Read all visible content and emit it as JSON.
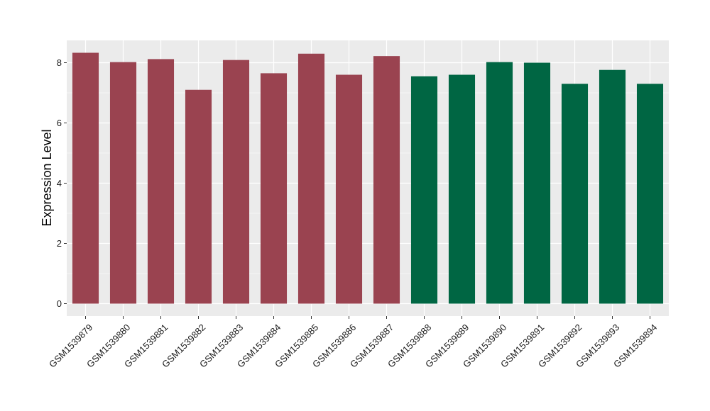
{
  "chart_data": {
    "type": "bar",
    "title": "",
    "xlabel": "",
    "ylabel": "Expression Level",
    "ylim": [
      0,
      8.75
    ],
    "yticks": [
      0,
      2,
      4,
      6,
      8
    ],
    "grid": true,
    "legend": "none",
    "categories": [
      "GSM1539879",
      "GSM1539880",
      "GSM1539881",
      "GSM1539882",
      "GSM1539883",
      "GSM1539884",
      "GSM1539885",
      "GSM1539886",
      "GSM1539887",
      "GSM1539888",
      "GSM1539889",
      "GSM1539890",
      "GSM1539891",
      "GSM1539892",
      "GSM1539893",
      "GSM1539894"
    ],
    "values": [
      8.33,
      8.02,
      8.12,
      7.1,
      8.09,
      7.65,
      8.3,
      7.6,
      8.22,
      7.55,
      7.6,
      8.02,
      8.0,
      7.3,
      7.76,
      7.3
    ],
    "groups": [
      1,
      1,
      1,
      1,
      1,
      1,
      1,
      1,
      1,
      2,
      2,
      2,
      2,
      2,
      2,
      2
    ],
    "colors": {
      "group1": "#9a4350",
      "group2": "#006643",
      "panel": "#ebebeb",
      "grid": "#ffffff"
    }
  }
}
